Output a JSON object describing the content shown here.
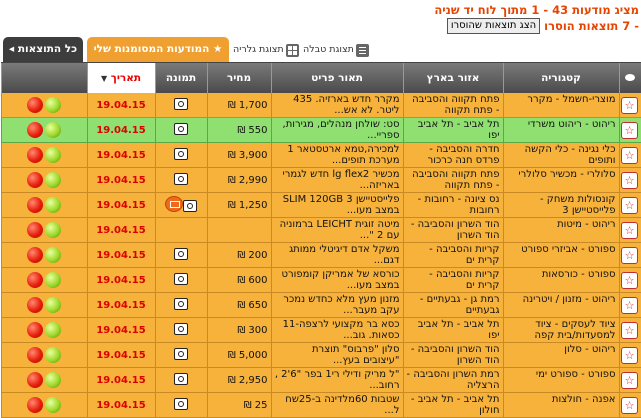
{
  "info": {
    "line1": "מציג מודעות 43 - 1 מתוך לוח יד שניה",
    "line2": "- 7 תוצאות הוסרו",
    "show_removed_button": "הצג תוצאות שהוסרו"
  },
  "tabs": {
    "all_results": "כל התוצאות",
    "marked_ads": "המודעות המסומנות שלי",
    "table_view": "תצוגת טבלה",
    "gallery_view": "תצוגת גלריה"
  },
  "columns": {
    "category": "קטגוריה",
    "region": "אזור בארץ",
    "description": "תאור פריט",
    "price": "מחיר",
    "image": "תמונה",
    "date": "תאריך"
  },
  "rows": [
    {
      "category": "מוצרי-חשמל - מקרר",
      "region": "פתח תקווה והסביבה - פתח תקווה",
      "description": "מקרר חדש בארזיה. 435 ליטר. לא אש...",
      "price": "1,700 ₪",
      "image": true,
      "badge": false,
      "date": "19.04.15",
      "highlight": "orange"
    },
    {
      "category": "ריהוט - ריהוט משרדי",
      "region": "תל אביב - תל אביב יפו",
      "description": "סט: שולחן מנהלים, מגירות, ספריי...",
      "price": "550 ₪",
      "image": true,
      "badge": false,
      "date": "19.04.15",
      "highlight": "green"
    },
    {
      "category": "כלי נגינה - כלי הקשה ותופים",
      "region": "חדרה והסביבה - פרדס חנה כרכור",
      "description": "למכירה,טמא ארטסטאר 1 מערכת תופים...",
      "price": "3,900 ₪",
      "image": true,
      "badge": false,
      "date": "19.04.15",
      "highlight": "orange"
    },
    {
      "category": "סלולרי - מכשיר סלולרי",
      "region": "פתח תקווה והסביבה - פתח תקווה",
      "description": "מכשיר lg flex2 חדש לגמרי באריזה...",
      "price": "2,990 ₪",
      "image": true,
      "badge": false,
      "date": "19.04.15",
      "highlight": "orange"
    },
    {
      "category": "קונסולות משחק - פלייסטיישן 3",
      "region": "נס ציונה - רחובות - רחובות",
      "description": "פלייסטיישן SLIM 120GB 3 במצב מעו...",
      "price": "1,250 ₪",
      "image": true,
      "badge": true,
      "date": "19.04.15",
      "highlight": "orange"
    },
    {
      "category": "ריהוט - מיטות",
      "region": "הוד השרון והסביבה - הוד השרון",
      "description": "מיטה זוגית LEICHT ברמוניה עם 2 \"...",
      "price": "",
      "image": false,
      "badge": false,
      "date": "19.04.15",
      "highlight": "orange"
    },
    {
      "category": "ספורט - אביזרי ספורט",
      "region": "קריות והסביבה - קרית ים",
      "description": "משקל אדם דיגיטלי ממותג דגם...",
      "price": "200 ₪",
      "image": true,
      "badge": false,
      "date": "19.04.15",
      "highlight": "orange"
    },
    {
      "category": "ספורט - כורסאות",
      "region": "קריות והסביבה - קרית ים",
      "description": "כורסא של אמריקן קומפורט במצב מעו...",
      "price": "600 ₪",
      "image": true,
      "badge": false,
      "date": "19.04.15",
      "highlight": "orange"
    },
    {
      "category": "ריהוט - מזנון / ויטרינה",
      "region": "רמת גן - גבעתיים - גבעתיים",
      "description": "מזנון מעץ מלא כחדש נמכר עקב מעבר...",
      "price": "650 ₪",
      "image": true,
      "badge": false,
      "date": "19.04.15",
      "highlight": "orange"
    },
    {
      "category": "ציוד לעסקים - ציוד למסעדות/בית קפה",
      "region": "תל אביב - תל אביב יפו",
      "description": "כסא בר מקצועי לרצפה-11 כסאות. גוב...",
      "price": "300 ₪",
      "image": true,
      "badge": false,
      "date": "19.04.15",
      "highlight": "orange"
    },
    {
      "category": "ריהוט - סלון",
      "region": "הוד השרון והסביבה - הוד השרון",
      "description": "סלון \"פרבוס\" תוצרת \"עיצובים בעץ...",
      "price": "5,000 ₪",
      "image": true,
      "badge": false,
      "date": "19.04.15",
      "highlight": "orange"
    },
    {
      "category": "ספורט - ספורט ימי",
      "region": "רמת השרון והסביבה - הרצליה",
      "description": "\"ל מריק ודילי רי1 בפר \"6'2 , רחוב...",
      "price": "2,950 ₪",
      "image": true,
      "badge": false,
      "date": "19.04.15",
      "highlight": "orange"
    },
    {
      "category": "אפנה - חולצות",
      "region": "תל אביב - תל אביב - חולון",
      "description": "שטבות 60מלדינה ב-25שח ל...",
      "price": "25 ₪",
      "image": true,
      "badge": false,
      "date": "19.04.15",
      "highlight": "orange"
    }
  ]
}
